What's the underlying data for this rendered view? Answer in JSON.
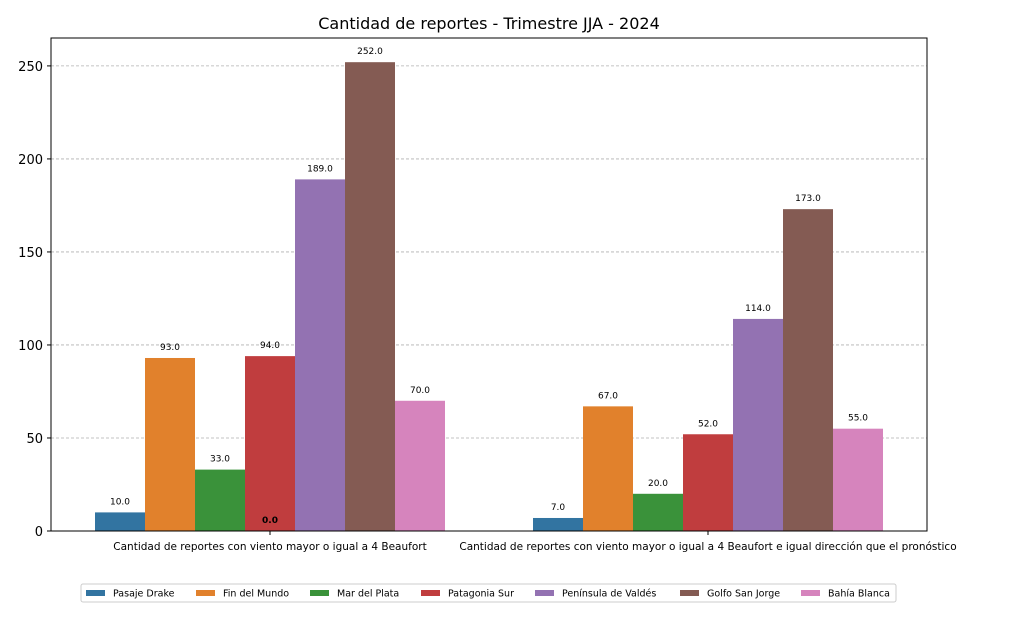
{
  "chart_data": {
    "type": "bar",
    "title": "Cantidad de reportes - Trimestre JJA - 2024",
    "xlabel": "",
    "ylabel": "",
    "ylim": [
      0,
      265
    ],
    "yticks": [
      0,
      50,
      100,
      150,
      200,
      250
    ],
    "ytick_labels": [
      "0",
      "50",
      "100",
      "150",
      "200",
      "250"
    ],
    "grid": "horizontal dashed",
    "legend_position": "bottom",
    "categories": [
      "Cantidad de reportes con viento mayor o igual a 4 Beaufort",
      "Cantidad de reportes con viento mayor o igual a 4 Beaufort e igual dirección que el pronóstico"
    ],
    "series": [
      {
        "name": "Pasaje Drake",
        "color": "#3274a1",
        "values": [
          10.0,
          7.0
        ],
        "labels": [
          "10.0",
          "7.0"
        ]
      },
      {
        "name": "Fin del Mundo",
        "color": "#e1812c",
        "values": [
          93.0,
          67.0
        ],
        "labels": [
          "93.0",
          "67.0"
        ]
      },
      {
        "name": "Mar del Plata",
        "color": "#3a923a",
        "values": [
          33.0,
          20.0
        ],
        "labels": [
          "33.0",
          "20.0"
        ]
      },
      {
        "name": "Patagonia Sur",
        "color": "#c03d3e",
        "values": [
          94.0,
          52.0
        ],
        "labels": [
          "94.0",
          "52.0"
        ]
      },
      {
        "name": "Península de Valdés",
        "color": "#9372b2",
        "values": [
          189.0,
          114.0
        ],
        "labels": [
          "189.0",
          "114.0"
        ]
      },
      {
        "name": "Golfo San Jorge",
        "color": "#845b53",
        "values": [
          252.0,
          173.0
        ],
        "labels": [
          "252.0",
          "173.0"
        ]
      },
      {
        "name": "Bahía Blanca",
        "color": "#d684bd",
        "values": [
          70.0,
          55.0
        ],
        "labels": [
          "70.0",
          "55.0"
        ]
      }
    ],
    "extra_label": "0.0"
  }
}
